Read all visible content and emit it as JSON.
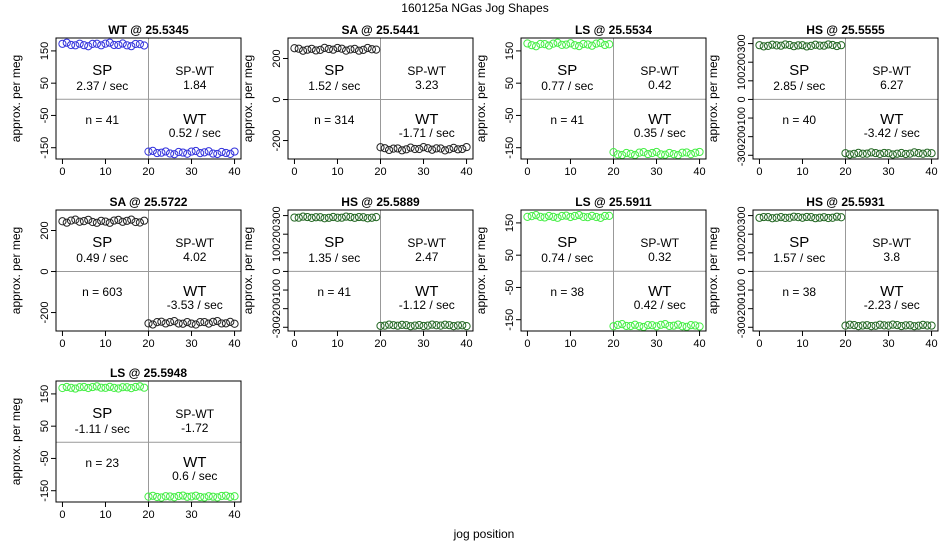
{
  "figure": {
    "title": "160125a   NGas Jog Shapes",
    "xlabel": "jog position",
    "ylabel": "approx. per meg"
  },
  "chart_data": [
    {
      "type": "scatter",
      "title": "WT @ 25.5345",
      "color": "#3333dd",
      "ylim": [
        -185,
        190
      ],
      "yticks": [
        150,
        50,
        -50,
        -150
      ],
      "sp_level": 170,
      "wt_level": -165,
      "jitter": 5,
      "sp_label": "SP",
      "sp_rate": "2.37 / sec",
      "spwt_label": "SP-WT",
      "spwt_value": "1.84",
      "n_label": "n = 41",
      "wt_label": "WT",
      "wt_rate": "0.52 / sec"
    },
    {
      "type": "scatter",
      "title": "SA @ 25.5441",
      "color": "#222222",
      "ylim": [
        -290,
        300
      ],
      "yticks": [
        200,
        0,
        -200
      ],
      "sp_level": 245,
      "wt_level": -240,
      "jitter": 7,
      "sp_label": "SP",
      "sp_rate": "1.52 / sec",
      "spwt_label": "SP-WT",
      "spwt_value": "3.23",
      "n_label": "n = 314",
      "wt_label": "WT",
      "wt_rate": "-1.71 / sec"
    },
    {
      "type": "scatter",
      "title": "LS @ 25.5534",
      "color": "#44ee44",
      "ylim": [
        -185,
        190
      ],
      "yticks": [
        150,
        50,
        -50,
        -150
      ],
      "sp_level": 170,
      "wt_level": -168,
      "jitter": 5,
      "sp_label": "SP",
      "sp_rate": "0.77 / sec",
      "spwt_label": "SP-WT",
      "spwt_value": "0.42",
      "n_label": "n = 41",
      "wt_label": "WT",
      "wt_rate": "0.35 / sec"
    },
    {
      "type": "scatter",
      "title": "HS @ 25.5555",
      "color": "#226622",
      "ylim": [
        -320,
        330
      ],
      "yticks": [
        300,
        200,
        100,
        0,
        -100,
        -200,
        -300
      ],
      "sp_level": 290,
      "wt_level": -290,
      "jitter": 5,
      "sp_label": "SP",
      "sp_rate": "2.85 / sec",
      "spwt_label": "SP-WT",
      "spwt_value": "6.27",
      "n_label": "n = 40",
      "wt_label": "WT",
      "wt_rate": "-3.42 / sec"
    },
    {
      "type": "scatter",
      "title": "SA @ 25.5722",
      "color": "#222222",
      "ylim": [
        -290,
        300
      ],
      "yticks": [
        200,
        0,
        -200
      ],
      "sp_level": 245,
      "wt_level": -250,
      "jitter": 8,
      "sp_label": "SP",
      "sp_rate": "0.49 / sec",
      "spwt_label": "SP-WT",
      "spwt_value": "4.02",
      "n_label": "n = 603",
      "wt_label": "WT",
      "wt_rate": "-3.53 / sec"
    },
    {
      "type": "scatter",
      "title": "HS @ 25.5889",
      "color": "#226622",
      "ylim": [
        -320,
        330
      ],
      "yticks": [
        300,
        200,
        100,
        0,
        -100,
        -200,
        -300
      ],
      "sp_level": 290,
      "wt_level": -290,
      "jitter": 4,
      "sp_label": "SP",
      "sp_rate": "1.35 / sec",
      "spwt_label": "SP-WT",
      "spwt_value": "2.47",
      "n_label": "n = 41",
      "wt_label": "WT",
      "wt_rate": "-1.12 / sec"
    },
    {
      "type": "scatter",
      "title": "LS @ 25.5911",
      "color": "#44ee44",
      "ylim": [
        -185,
        190
      ],
      "yticks": [
        150,
        50,
        -50,
        -150
      ],
      "sp_level": 170,
      "wt_level": -168,
      "jitter": 4,
      "sp_label": "SP",
      "sp_rate": "0.74 / sec",
      "spwt_label": "SP-WT",
      "spwt_value": "0.32",
      "n_label": "n = 38",
      "wt_label": "WT",
      "wt_rate": "0.42 / sec"
    },
    {
      "type": "scatter",
      "title": "HS @ 25.5931",
      "color": "#226622",
      "ylim": [
        -320,
        330
      ],
      "yticks": [
        300,
        200,
        100,
        0,
        -100,
        -200,
        -300
      ],
      "sp_level": 290,
      "wt_level": -290,
      "jitter": 4,
      "sp_label": "SP",
      "sp_rate": "1.57 / sec",
      "spwt_label": "SP-WT",
      "spwt_value": "3.8",
      "n_label": "n = 38",
      "wt_label": "WT",
      "wt_rate": "-2.23 / sec"
    },
    {
      "type": "scatter",
      "title": "LS @ 25.5948",
      "color": "#44ee44",
      "ylim": [
        -185,
        190
      ],
      "yticks": [
        150,
        50,
        -50,
        -150
      ],
      "sp_level": 170,
      "wt_level": -168,
      "jitter": 3,
      "sp_label": "SP",
      "sp_rate": "-1.11 / sec",
      "spwt_label": "SP-WT",
      "spwt_value": "-1.72",
      "n_label": "n = 23",
      "wt_label": "WT",
      "wt_rate": "0.6 / sec"
    }
  ],
  "x_axis": {
    "xlim": [
      -1.5,
      41.5
    ],
    "xticks": [
      0,
      10,
      20,
      30,
      40
    ],
    "divider_x": 20
  }
}
